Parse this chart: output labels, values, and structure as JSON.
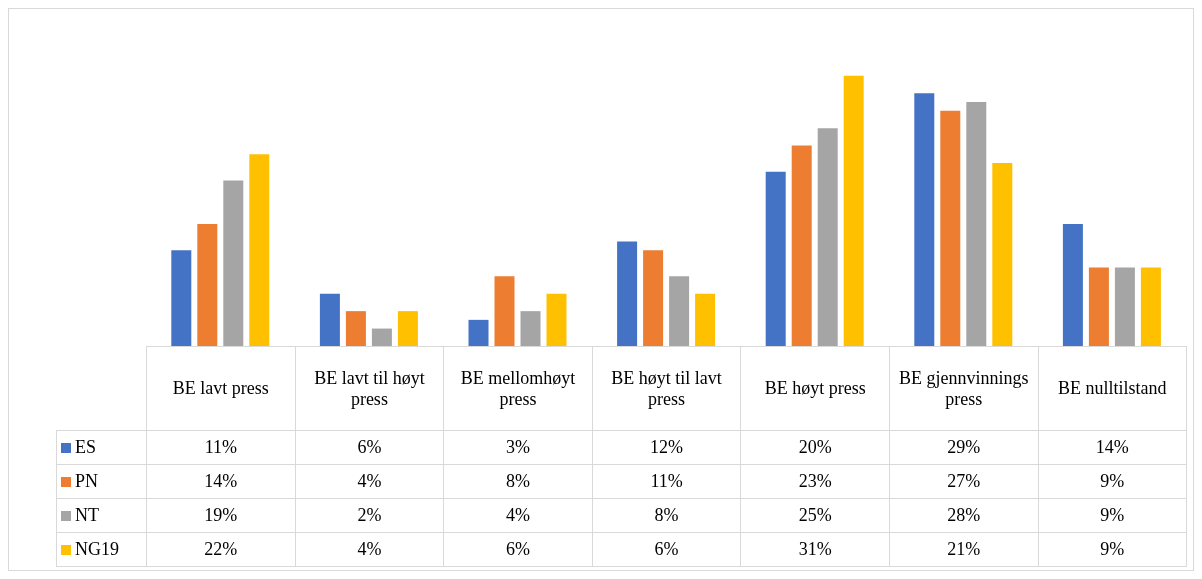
{
  "chart_data": {
    "type": "bar",
    "categories": [
      "BE lavt press",
      "BE lavt til høyt press",
      "BE mellomhøyt press",
      "BE høyt til lavt press",
      "BE høyt press",
      "BE gjennvinnings press",
      "BE nulltilstand"
    ],
    "series": [
      {
        "name": "ES",
        "color": "#4472c4",
        "values": [
          11,
          6,
          3,
          12,
          20,
          29,
          14
        ],
        "value_labels": [
          "11%",
          "6%",
          "3%",
          "12%",
          "20%",
          "29%",
          "14%"
        ]
      },
      {
        "name": "PN",
        "color": "#ed7d31",
        "values": [
          14,
          4,
          8,
          11,
          23,
          27,
          9
        ],
        "value_labels": [
          "14%",
          "4%",
          "8%",
          "11%",
          "23%",
          "27%",
          "9%"
        ]
      },
      {
        "name": "NT",
        "color": "#a5a5a5",
        "values": [
          19,
          2,
          4,
          8,
          25,
          28,
          9
        ],
        "value_labels": [
          "19%",
          "2%",
          "4%",
          "8%",
          "25%",
          "28%",
          "9%"
        ]
      },
      {
        "name": "NG19",
        "color": "#ffc000",
        "values": [
          22,
          4,
          6,
          6,
          31,
          21,
          9
        ],
        "value_labels": [
          "22%",
          "4%",
          "6%",
          "6%",
          "31%",
          "21%",
          "9%"
        ]
      }
    ],
    "legend": "bottom left"
  }
}
